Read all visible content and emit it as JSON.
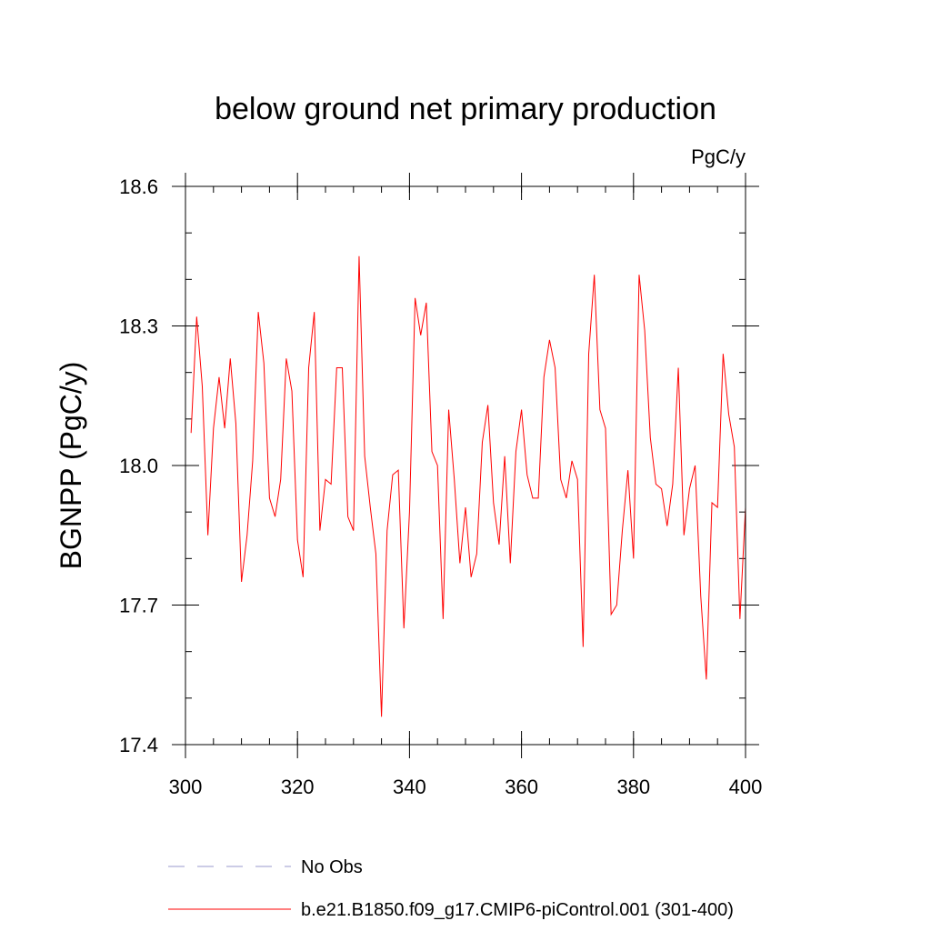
{
  "chart_data": {
    "type": "line",
    "title": "below ground net primary production",
    "units_label": "PgC/y",
    "ylabel": "BGNPP  (PgC/y)",
    "xlabel": "",
    "xlim": [
      300,
      400
    ],
    "ylim": [
      17.4,
      18.6
    ],
    "x_ticks": [
      300,
      320,
      340,
      360,
      380,
      400
    ],
    "x_tick_labels": [
      "300",
      "320",
      "340",
      "360",
      "380",
      "400"
    ],
    "y_ticks": [
      17.4,
      17.7,
      18.0,
      18.3,
      18.6
    ],
    "y_tick_labels": [
      "17.4",
      "17.7",
      "18.0",
      "18.3",
      "18.6"
    ],
    "y_minor_step": 0.1,
    "x_minor_step": 5,
    "grid": false,
    "legend_position": "bottom",
    "series": [
      {
        "name": "b.e21.B1850.f09_g17.CMIP6-piControl.001 (301-400)",
        "color": "#ff0000",
        "style": "solid",
        "x": [
          301,
          302,
          303,
          304,
          305,
          306,
          307,
          308,
          309,
          310,
          311,
          312,
          313,
          314,
          315,
          316,
          317,
          318,
          319,
          320,
          321,
          322,
          323,
          324,
          325,
          326,
          327,
          328,
          329,
          330,
          331,
          332,
          333,
          334,
          335,
          336,
          337,
          338,
          339,
          340,
          341,
          342,
          343,
          344,
          345,
          346,
          347,
          348,
          349,
          350,
          351,
          352,
          353,
          354,
          355,
          356,
          357,
          358,
          359,
          360,
          361,
          362,
          363,
          364,
          365,
          366,
          367,
          368,
          369,
          370,
          371,
          372,
          373,
          374,
          375,
          376,
          377,
          378,
          379,
          380,
          381,
          382,
          383,
          384,
          385,
          386,
          387,
          388,
          389,
          390,
          391,
          392,
          393,
          394,
          395,
          396,
          397,
          398,
          399,
          400
        ],
        "values": [
          18.07,
          18.32,
          18.17,
          17.85,
          18.08,
          18.19,
          18.08,
          18.23,
          18.09,
          17.75,
          17.85,
          18.01,
          18.33,
          18.22,
          17.93,
          17.89,
          17.97,
          18.23,
          18.16,
          17.84,
          17.76,
          18.21,
          18.33,
          17.86,
          17.97,
          17.96,
          18.21,
          18.21,
          17.89,
          17.86,
          18.45,
          18.02,
          17.91,
          17.81,
          17.46,
          17.86,
          17.98,
          17.99,
          17.65,
          17.9,
          18.36,
          18.28,
          18.35,
          18.03,
          18.0,
          17.67,
          18.12,
          17.97,
          17.79,
          17.91,
          17.76,
          17.81,
          18.05,
          18.13,
          17.92,
          17.83,
          18.02,
          17.79,
          18.03,
          18.12,
          17.98,
          17.93,
          17.93,
          18.19,
          18.27,
          18.21,
          17.97,
          17.93,
          18.01,
          17.97,
          17.61,
          18.24,
          18.41,
          18.12,
          18.08,
          17.68,
          17.7,
          17.86,
          17.99,
          17.8,
          18.41,
          18.29,
          18.06,
          17.96,
          17.95,
          17.87,
          17.96,
          18.21,
          17.85,
          17.95,
          18.0,
          17.72,
          17.54,
          17.92,
          17.91,
          18.24,
          18.11,
          18.04,
          17.67,
          17.91
        ]
      }
    ],
    "legend": [
      {
        "name": "No Obs",
        "color": "#9999cc",
        "style": "dashed"
      },
      {
        "name": "b.e21.B1850.f09_g17.CMIP6-piControl.001 (301-400)",
        "color": "#ff0000",
        "style": "solid"
      }
    ]
  }
}
